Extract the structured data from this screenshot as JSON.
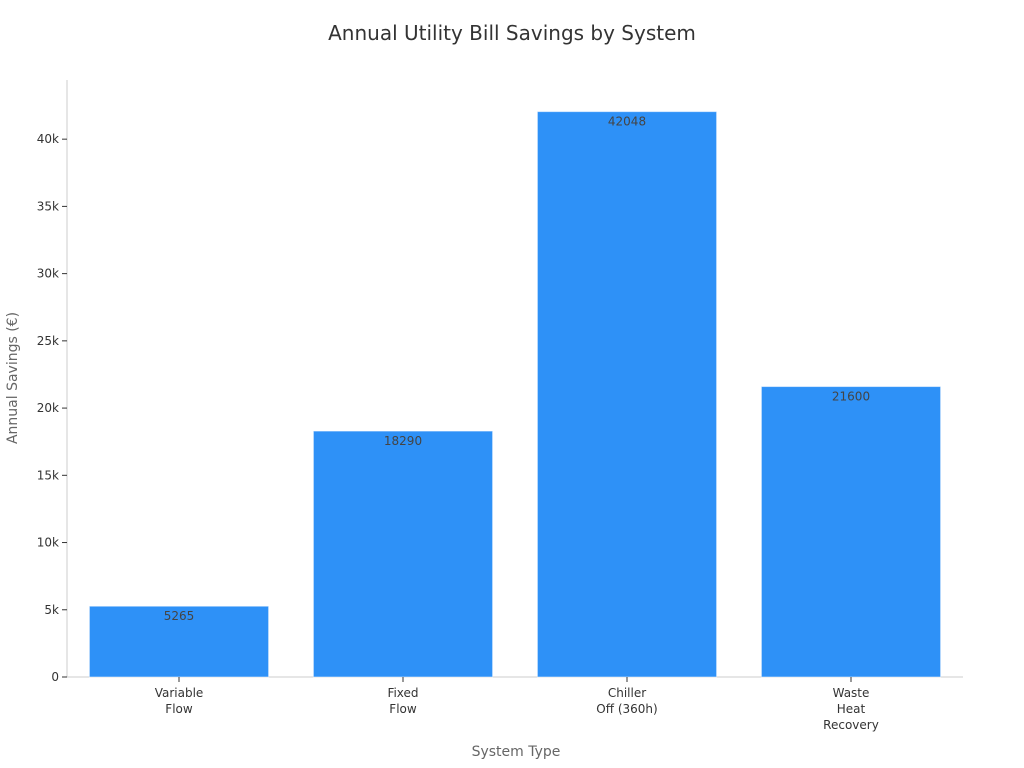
{
  "chart_data": {
    "type": "bar",
    "title": "Annual Utility Bill Savings by System",
    "xlabel": "System Type",
    "ylabel": "Annual Savings (€)",
    "categories": [
      [
        "Variable",
        "Flow"
      ],
      [
        "Fixed",
        "Flow"
      ],
      [
        "Chiller",
        "Off (360h)"
      ],
      [
        "Waste",
        "Heat",
        "Recovery"
      ]
    ],
    "values": [
      5265,
      18290,
      42048,
      21600
    ],
    "data_labels": [
      "5265",
      "18290",
      "42048",
      "21600"
    ],
    "ylim": [
      0,
      44400
    ],
    "yticks": [
      0,
      5000,
      10000,
      15000,
      20000,
      25000,
      30000,
      35000,
      40000
    ],
    "ytick_labels": [
      "0",
      "5k",
      "10k",
      "15k",
      "20k",
      "25k",
      "30k",
      "35k",
      "40k"
    ],
    "bar_color": "#2e91f7",
    "axis_color": "#cccccc",
    "grid": false,
    "legend": "none"
  }
}
